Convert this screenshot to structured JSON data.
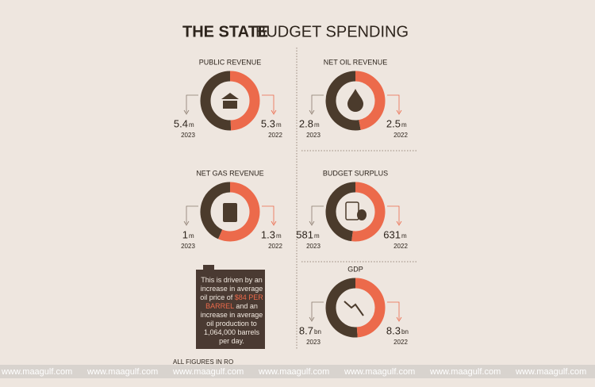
{
  "header": {
    "title_lead": "THE STATE",
    "title": "BUDGET SPENDING"
  },
  "chart_data": [
    {
      "type": "donut",
      "title": "PUBLIC REVENUE",
      "categories": [
        "2023",
        "2022"
      ],
      "values": [
        5.4,
        5.3
      ],
      "unit": "m",
      "colors": [
        "#4b3b2c",
        "#ec6a4b"
      ]
    },
    {
      "type": "donut",
      "title": "NET OIL REVENUE",
      "categories": [
        "2023",
        "2022"
      ],
      "values": [
        2.8,
        2.5
      ],
      "unit": "m",
      "colors": [
        "#4b3b2c",
        "#ec6a4b"
      ]
    },
    {
      "type": "donut",
      "title": "NET GAS REVENUE",
      "categories": [
        "2023",
        "2022"
      ],
      "values": [
        1,
        1.3
      ],
      "unit": "m",
      "colors": [
        "#4b3b2c",
        "#ec6a4b"
      ]
    },
    {
      "type": "donut",
      "title": "BUDGET SURPLUS",
      "categories": [
        "2023",
        "2022"
      ],
      "values": [
        581,
        631
      ],
      "unit": "m",
      "colors": [
        "#4b3b2c",
        "#ec6a4b"
      ]
    },
    {
      "type": "donut",
      "title": "GDP",
      "categories": [
        "2023",
        "2022"
      ],
      "values": [
        8.7,
        8.3
      ],
      "unit": "bn",
      "colors": [
        "#4b3b2c",
        "#ec6a4b"
      ]
    }
  ],
  "note": {
    "before": "This is driven by an increase in average oil price of",
    "highlight": "$84 PER BARREL",
    "after": "and an increase in average oil production to 1,064,000 barrels per day."
  },
  "footer": "ALL FIGURES IN RO",
  "watermark": "www.maagulf.com"
}
